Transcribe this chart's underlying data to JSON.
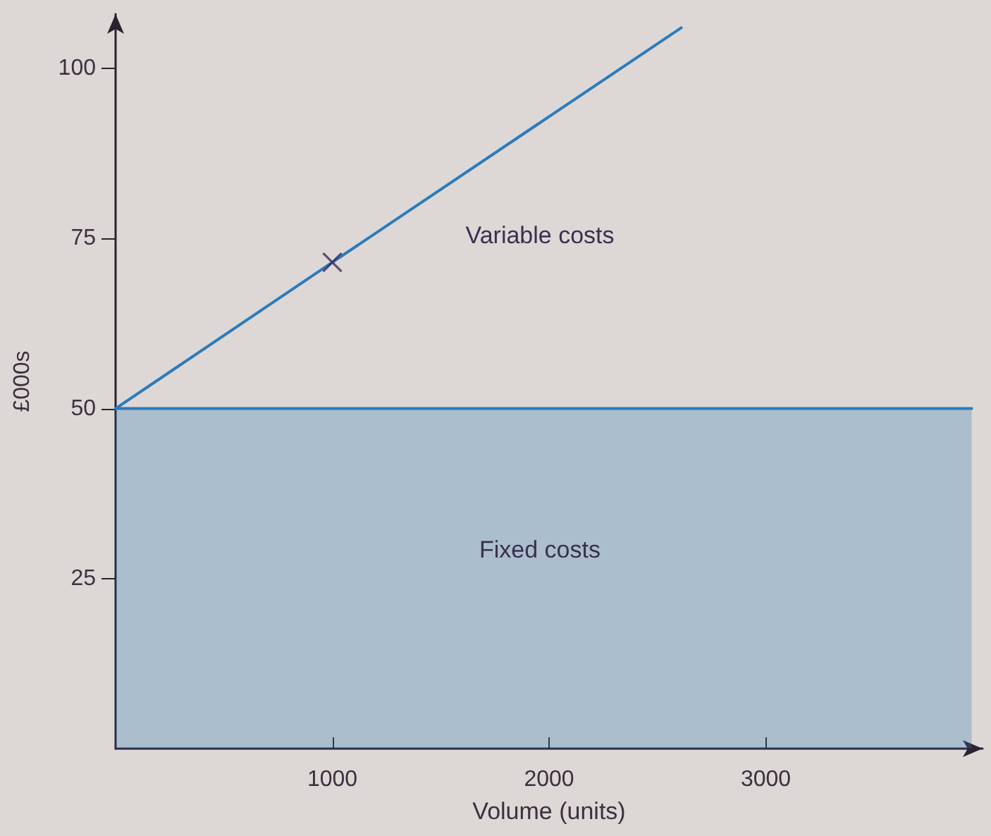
{
  "chart_data": {
    "type": "line",
    "xlabel": "Volume (units)",
    "ylabel": "£000s",
    "xlim": [
      0,
      4000
    ],
    "ylim": [
      0,
      108
    ],
    "xticks": [
      1000,
      2000,
      3000
    ],
    "yticks": [
      25,
      50,
      75,
      100
    ],
    "grid": false,
    "series": [
      {
        "type": "area",
        "color": "#2b7bbb",
        "x": [
          0,
          3950
        ],
        "values": [
          50,
          50
        ]
      },
      {
        "color": "#2b7bbb",
        "x": [
          0,
          1000,
          2610
        ],
        "values": [
          50,
          71.5,
          106
        ]
      },
      {
        "type": "scatter",
        "color": "#3a2a5a",
        "x": [
          1000
        ],
        "values": [
          71.5
        ],
        "marker": "cross"
      }
    ],
    "annotations": [
      "Variable costs",
      "Fixed costs"
    ]
  }
}
